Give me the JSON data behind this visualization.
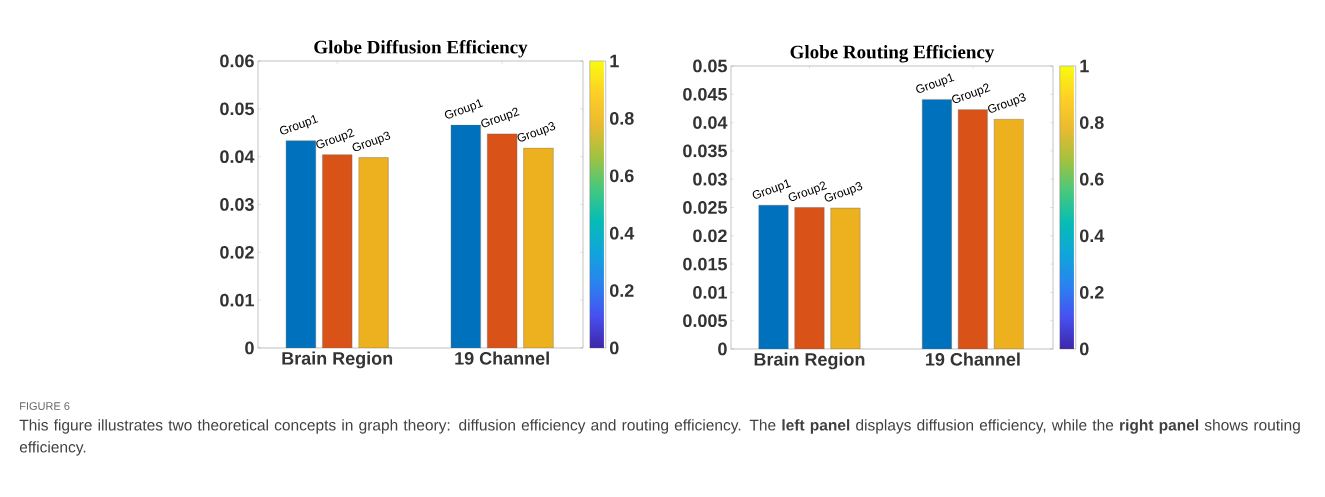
{
  "chart_data": [
    {
      "type": "bar",
      "title": "Globe  Diffusion Efficiency",
      "categories": [
        "Brain Region",
        "19 Channel"
      ],
      "series": [
        {
          "name": "Group1",
          "color": "#0072bd",
          "values": [
            0.0433,
            0.0466
          ]
        },
        {
          "name": "Group2",
          "color": "#d95319",
          "values": [
            0.0404,
            0.0448
          ]
        },
        {
          "name": "Group3",
          "color": "#edb120",
          "values": [
            0.0398,
            0.0418
          ]
        }
      ],
      "ylim": [
        0,
        0.06
      ],
      "yticks": [
        0,
        0.01,
        0.02,
        0.03,
        0.04,
        0.05,
        0.06
      ],
      "clim": [
        0,
        1
      ],
      "cticks": [
        0,
        0.2,
        0.4,
        0.6,
        0.8,
        1
      ],
      "annotations": [
        "FIGURE 6",
        "This figure illustrates two theoretical concepts in graph theory: diffusion efficiency and routing efficiency. The **left panel** displays diffusion efficiency, while the **right panel** shows routing efficiency."
      ]
    },
    {
      "type": "bar",
      "title": "Globe Routing Efficiency",
      "categories": [
        "Brain Region",
        "19 Channel"
      ],
      "series": [
        {
          "name": "Group1",
          "color": "#0072bd",
          "values": [
            0.0254,
            0.0441
          ]
        },
        {
          "name": "Group2",
          "color": "#d95319",
          "values": [
            0.025,
            0.0423
          ]
        },
        {
          "name": "Group3",
          "color": "#edb120",
          "values": [
            0.0249,
            0.0406
          ]
        }
      ],
      "ylim": [
        0,
        0.05
      ],
      "yticks": [
        0,
        0.005,
        0.01,
        0.015,
        0.02,
        0.025,
        0.03,
        0.035,
        0.04,
        0.045,
        0.05
      ],
      "clim": [
        0,
        1
      ],
      "cticks": [
        0,
        0.2,
        0.4,
        0.6,
        0.8,
        1
      ]
    }
  ]
}
